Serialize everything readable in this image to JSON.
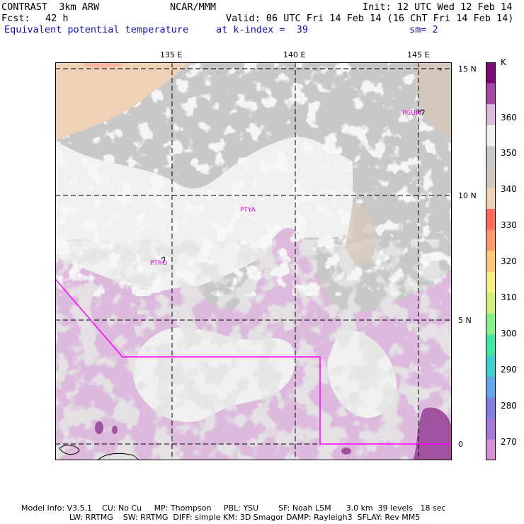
{
  "header": {
    "model": "CONTRAST  3km ARW",
    "org": "NCAR/MMM",
    "init": "Init: 12 UTC Wed 12 Feb 14",
    "fcst_label": "Fcst:",
    "fcst_value": "42 h",
    "valid": "Valid: 06 UTC Fri 14 Feb 14 (16 ChT Fri 14 Feb 14)",
    "field": "Equivalent potential temperature",
    "level": "at k-index =  39",
    "smoothing": "sm= 2"
  },
  "map": {
    "lon_labels": [
      "135 E",
      "140 E",
      "145 E"
    ],
    "lat_labels": [
      "15 N",
      "10 N",
      "5 N",
      "0"
    ],
    "stations": [
      "PGUM",
      "PTYA",
      "PTRO"
    ],
    "colors": {
      "background_light": "#f0f0f0",
      "gray": "#c8c8c8",
      "tan": "#d4c8bc",
      "peach": "#efd1b8",
      "lavender": "#dcb9dd",
      "purple": "#a457a4",
      "boundary": "#ff00ff",
      "station": "#dd00dd"
    }
  },
  "colorbar": {
    "unit": "K",
    "ticks": [
      "360",
      "350",
      "340",
      "330",
      "320",
      "310",
      "300",
      "290",
      "280",
      "270"
    ],
    "colors": [
      "#7a0a7a",
      "#a54aa5",
      "#dcb9dd",
      "#f0f0f0",
      "#c8c8c8",
      "#d4c8bc",
      "#efd1b8",
      "#ff6a5a",
      "#ff9a68",
      "#ffc878",
      "#f8f080",
      "#d0f080",
      "#88f088",
      "#40e8a0",
      "#40d0d0",
      "#60a8e8",
      "#8080e0",
      "#a878d8",
      "#d890d8"
    ]
  },
  "footer": {
    "line1": "Model Info: V3.5.1    CU: No Cu     MP: Thompson     PBL: YSU        SF: Noah LSM      3.0 km  39 levels   18 sec",
    "line2": "LW: RRTMG    SW: RRTMG  DIFF: simple KM: 3D Smagor DAMP: Rayleigh3  SFLAY: Rev MM5"
  }
}
